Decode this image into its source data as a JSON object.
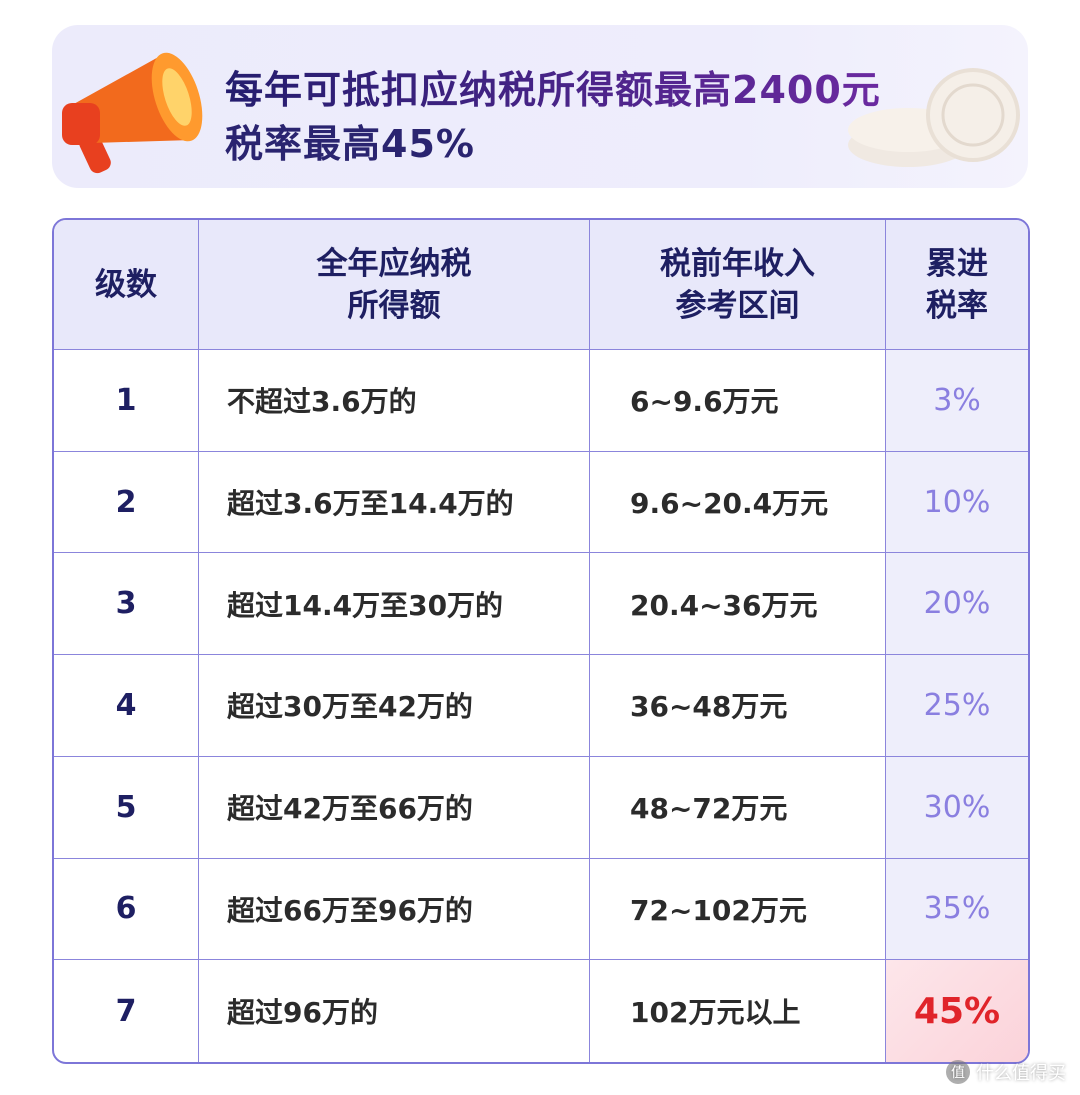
{
  "header": {
    "title_lines": [
      "每年可抵扣应纳税所得额最高2400元",
      "税率最高45%"
    ]
  },
  "table": {
    "columns": [
      [
        "级数"
      ],
      [
        "全年应纳税",
        "所得额"
      ],
      [
        "税前年收入",
        "参考区间"
      ],
      [
        "累进",
        "税率"
      ]
    ],
    "rows": [
      [
        "1",
        "不超过3.6万的",
        "6~9.6万元",
        "3%"
      ],
      [
        "2",
        "超过3.6万至14.4万的",
        "9.6~20.4万元",
        "10%"
      ],
      [
        "3",
        "超过14.4万至30万的",
        "20.4~36万元",
        "20%"
      ],
      [
        "4",
        "超过30万至42万的",
        "36~48万元",
        "25%"
      ],
      [
        "5",
        "超过42万至66万的",
        "48~72万元",
        "30%"
      ],
      [
        "6",
        "超过66万至96万的",
        "72~102万元",
        "35%"
      ],
      [
        "7",
        "超过96万的",
        "102万元以上",
        "45%"
      ]
    ]
  },
  "watermark": {
    "icon": "值",
    "text": "什么值得买"
  }
}
